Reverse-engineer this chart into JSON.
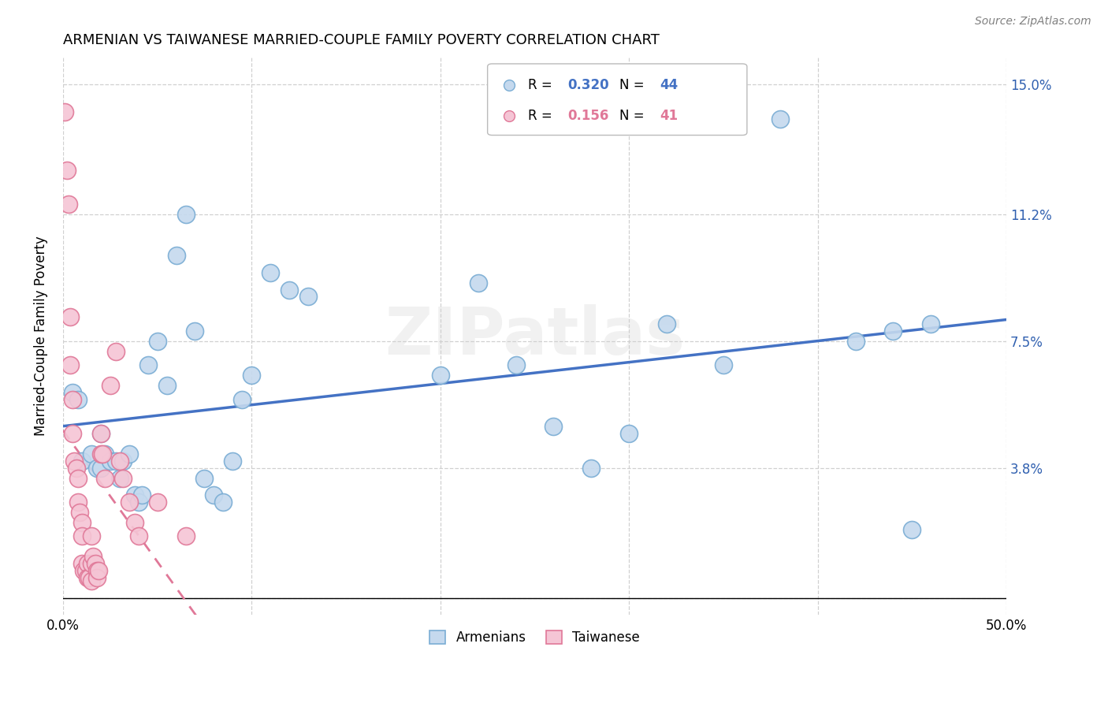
{
  "title": "ARMENIAN VS TAIWANESE MARRIED-COUPLE FAMILY POVERTY CORRELATION CHART",
  "source": "Source: ZipAtlas.com",
  "ylabel": "Married-Couple Family Poverty",
  "xlim": [
    0.0,
    0.5
  ],
  "ylim": [
    -0.005,
    0.158
  ],
  "ytick_positions": [
    0.0,
    0.038,
    0.075,
    0.112,
    0.15
  ],
  "yticklabels_right": [
    "",
    "3.8%",
    "7.5%",
    "11.2%",
    "15.0%"
  ],
  "xtick_positions": [
    0.0,
    0.1,
    0.2,
    0.3,
    0.4,
    0.5
  ],
  "xticklabels": [
    "0.0%",
    "",
    "",
    "",
    "",
    "50.0%"
  ],
  "legend_armenians": "Armenians",
  "legend_taiwanese": "Taiwanese",
  "R_armenians": "0.320",
  "N_armenians": "44",
  "R_taiwanese": "0.156",
  "N_taiwanese": "41",
  "blue_fill": "#c5d9ee",
  "blue_edge": "#7aadd4",
  "pink_fill": "#f5c5d5",
  "pink_edge": "#e07898",
  "blue_line": "#4472c4",
  "pink_line": "#e07898",
  "grid_color": "#d0d0d0",
  "watermark": "ZIPatlas",
  "armenians_x": [
    0.005,
    0.008,
    0.01,
    0.015,
    0.018,
    0.02,
    0.02,
    0.022,
    0.025,
    0.028,
    0.03,
    0.032,
    0.035,
    0.038,
    0.04,
    0.042,
    0.045,
    0.05,
    0.055,
    0.06,
    0.065,
    0.07,
    0.075,
    0.08,
    0.085,
    0.09,
    0.095,
    0.1,
    0.11,
    0.12,
    0.13,
    0.2,
    0.22,
    0.24,
    0.26,
    0.28,
    0.3,
    0.32,
    0.35,
    0.38,
    0.42,
    0.44,
    0.45,
    0.46
  ],
  "armenians_y": [
    0.06,
    0.058,
    0.04,
    0.042,
    0.038,
    0.038,
    0.048,
    0.042,
    0.04,
    0.04,
    0.035,
    0.04,
    0.042,
    0.03,
    0.028,
    0.03,
    0.068,
    0.075,
    0.062,
    0.1,
    0.112,
    0.078,
    0.035,
    0.03,
    0.028,
    0.04,
    0.058,
    0.065,
    0.095,
    0.09,
    0.088,
    0.065,
    0.092,
    0.068,
    0.05,
    0.038,
    0.048,
    0.08,
    0.068,
    0.14,
    0.075,
    0.078,
    0.02,
    0.08
  ],
  "taiwanese_x": [
    0.001,
    0.002,
    0.003,
    0.004,
    0.004,
    0.005,
    0.005,
    0.006,
    0.007,
    0.008,
    0.008,
    0.009,
    0.01,
    0.01,
    0.01,
    0.011,
    0.012,
    0.013,
    0.013,
    0.014,
    0.015,
    0.015,
    0.015,
    0.016,
    0.017,
    0.018,
    0.018,
    0.019,
    0.02,
    0.02,
    0.021,
    0.022,
    0.025,
    0.028,
    0.03,
    0.032,
    0.035,
    0.038,
    0.04,
    0.05,
    0.065
  ],
  "taiwanese_y": [
    0.142,
    0.125,
    0.115,
    0.082,
    0.068,
    0.058,
    0.048,
    0.04,
    0.038,
    0.035,
    0.028,
    0.025,
    0.022,
    0.018,
    0.01,
    0.008,
    0.008,
    0.01,
    0.006,
    0.006,
    0.005,
    0.01,
    0.018,
    0.012,
    0.01,
    0.008,
    0.006,
    0.008,
    0.048,
    0.042,
    0.042,
    0.035,
    0.062,
    0.072,
    0.04,
    0.035,
    0.028,
    0.022,
    0.018,
    0.028,
    0.018
  ]
}
